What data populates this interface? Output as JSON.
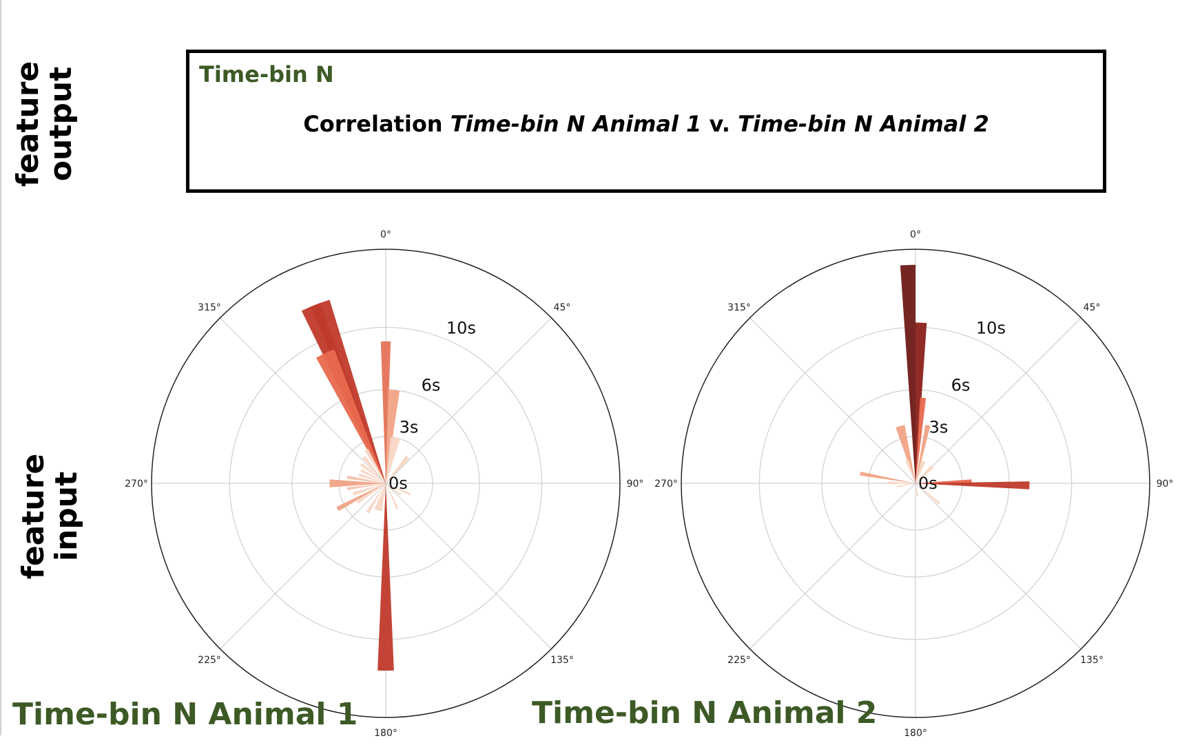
{
  "side_labels": {
    "output": [
      "feature",
      "output"
    ],
    "input": [
      "feature",
      "input"
    ]
  },
  "box": {
    "bin_label": "Time-bin N",
    "corr_prefix": "Correlation ",
    "corr_a": "Time-bin N Animal 1",
    "corr_mid": " v. ",
    "corr_b": "Time-bin N Animal 2"
  },
  "panel_labels": {
    "animal1": "Time-bin N Animal 1",
    "animal2": "Time-bin N Animal 2"
  },
  "chart_data": [
    {
      "type": "polar-bar",
      "title": "Time-bin N Animal 1",
      "theta_ticks": [
        "0°",
        "45°",
        "90°",
        "135°",
        "180°",
        "225°",
        "270°",
        "315°"
      ],
      "radial_ticks": [
        {
          "value": 0,
          "label": "0s"
        },
        {
          "value": 3,
          "label": "3s"
        },
        {
          "value": 6,
          "label": "6s"
        },
        {
          "value": 10,
          "label": "10s"
        }
      ],
      "rlim": [
        0,
        15
      ],
      "grid": true,
      "theta_zero": "top",
      "theta_direction": "clockwise",
      "bars": [
        {
          "angle": -23,
          "width": 6,
          "r": 12.3,
          "color": "#c03a2b"
        },
        {
          "angle": -20,
          "width": 6,
          "r": 12.3,
          "color": "#c03a2b"
        },
        {
          "angle": -25,
          "width": 8,
          "r": 9.2,
          "color": "#e8694e"
        },
        {
          "angle": 0,
          "width": 4,
          "r": 9.1,
          "color": "#e57359"
        },
        {
          "angle": 5,
          "width": 7,
          "r": 6.0,
          "color": "#f0a385"
        },
        {
          "angle": 12,
          "width": 12,
          "r": 3.0,
          "color": "#f8d6c4"
        },
        {
          "angle": 40,
          "width": 8,
          "r": 2.2,
          "color": "#f8d6c4"
        },
        {
          "angle": -30,
          "width": 6,
          "r": 2.5,
          "color": "#f8d6c4"
        },
        {
          "angle": -40,
          "width": 6,
          "r": 2.2,
          "color": "#f8d6c4"
        },
        {
          "angle": -52,
          "width": 6,
          "r": 2.0,
          "color": "#f8d6c4"
        },
        {
          "angle": -62,
          "width": 6,
          "r": 1.8,
          "color": "#f8d6c4"
        },
        {
          "angle": -72,
          "width": 6,
          "r": 1.8,
          "color": "#f8d6c4"
        },
        {
          "angle": -81,
          "width": 5,
          "r": 2.5,
          "color": "#f4c3ae"
        },
        {
          "angle": -88,
          "width": 4,
          "r": 3.6,
          "color": "#f0a385"
        },
        {
          "angle": -92,
          "width": 4,
          "r": 3.6,
          "color": "#f0a385"
        },
        {
          "angle": -98,
          "width": 4,
          "r": 2.5,
          "color": "#f4c3ae"
        },
        {
          "angle": -108,
          "width": 6,
          "r": 2.2,
          "color": "#f8d6c4"
        },
        {
          "angle": -118,
          "width": 5,
          "r": 3.5,
          "color": "#f0a385"
        },
        {
          "angle": -124,
          "width": 5,
          "r": 2.2,
          "color": "#f8d6c4"
        },
        {
          "angle": -148,
          "width": 6,
          "r": 2.2,
          "color": "#f8d6c4"
        },
        {
          "angle": -160,
          "width": 8,
          "r": 1.8,
          "color": "#f8d6c4"
        },
        {
          "angle": -168,
          "width": 8,
          "r": 1.8,
          "color": "#f8d6c4"
        },
        {
          "angle": 180,
          "width": 5,
          "r": 12.0,
          "color": "#c03a2b"
        },
        {
          "angle": 155,
          "width": 5,
          "r": 1.8,
          "color": "#f8d6c4"
        },
        {
          "angle": 114,
          "width": 5,
          "r": 1.7,
          "color": "#f8d6c4"
        },
        {
          "angle": 128,
          "width": 6,
          "r": 1.2,
          "color": "#f8d6c4"
        }
      ]
    },
    {
      "type": "polar-bar",
      "title": "Time-bin N Animal 2",
      "theta_ticks": [
        "0°",
        "45°",
        "90°",
        "135°",
        "180°",
        "225°",
        "270°",
        "315°"
      ],
      "radial_ticks": [
        {
          "value": 0,
          "label": "0s"
        },
        {
          "value": 3,
          "label": "3s"
        },
        {
          "value": 6,
          "label": "6s"
        },
        {
          "value": 10,
          "label": "10s"
        }
      ],
      "rlim": [
        0,
        15
      ],
      "grid": true,
      "theta_zero": "top",
      "theta_direction": "clockwise",
      "bars": [
        {
          "angle": -2,
          "width": 4,
          "r": 14.0,
          "color": "#6e1a16"
        },
        {
          "angle": 2,
          "width": 4,
          "r": 10.3,
          "color": "#8a201a"
        },
        {
          "angle": 5,
          "width": 4,
          "r": 5.5,
          "color": "#e8694e"
        },
        {
          "angle": 12,
          "width": 5,
          "r": 3.8,
          "color": "#f0a385"
        },
        {
          "angle": -15,
          "width": 9,
          "r": 3.8,
          "color": "#f0a385"
        },
        {
          "angle": -20,
          "width": 8,
          "r": 1.6,
          "color": "#f8d6c4"
        },
        {
          "angle": 20,
          "width": 10,
          "r": 1.5,
          "color": "#f8d6c4"
        },
        {
          "angle": 45,
          "width": 10,
          "r": 1.5,
          "color": "#f8d6c4"
        },
        {
          "angle": 88,
          "width": 4,
          "r": 3.6,
          "color": "#e8694e"
        },
        {
          "angle": 91,
          "width": 4,
          "r": 7.3,
          "color": "#c03a2b"
        },
        {
          "angle": -80,
          "width": 4,
          "r": 3.6,
          "color": "#f0a385"
        },
        {
          "angle": -89,
          "width": 5,
          "r": 1.8,
          "color": "#f8d6c4"
        },
        {
          "angle": -100,
          "width": 5,
          "r": 1.2,
          "color": "#f8d6c4"
        },
        {
          "angle": 130,
          "width": 5,
          "r": 2.0,
          "color": "#f8d6c4"
        },
        {
          "angle": 170,
          "width": 8,
          "r": 0.8,
          "color": "#f8d6c4"
        }
      ]
    }
  ]
}
